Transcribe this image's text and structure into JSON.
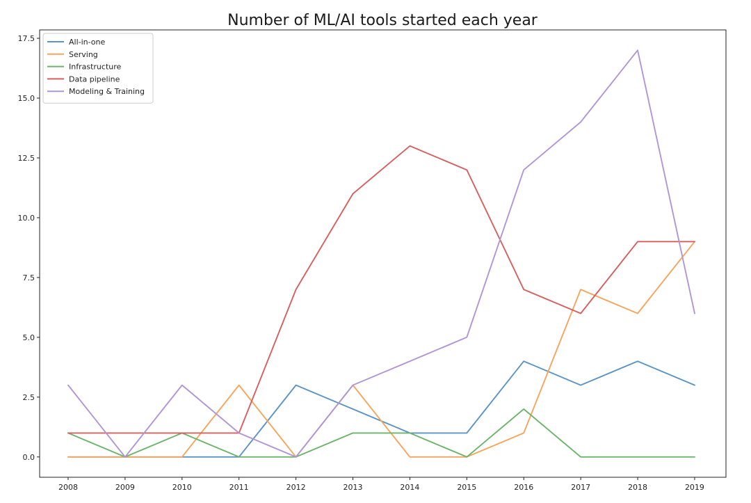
{
  "chart_data": {
    "type": "line",
    "title": "Number of ML/AI tools started each year",
    "xlabel": "",
    "ylabel": "",
    "x": [
      2008,
      2009,
      2010,
      2011,
      2012,
      2013,
      2014,
      2015,
      2016,
      2017,
      2018,
      2019
    ],
    "x_tick_labels": [
      "2008",
      "2009",
      "2010",
      "2011",
      "2012",
      "2013",
      "2014",
      "2015",
      "2016",
      "2017",
      "2018",
      "2019"
    ],
    "y_ticks": [
      0.0,
      2.5,
      5.0,
      7.5,
      10.0,
      12.5,
      15.0,
      17.5
    ],
    "y_tick_labels": [
      "0.0",
      "2.5",
      "5.0",
      "7.5",
      "10.0",
      "12.5",
      "15.0",
      "17.5"
    ],
    "xlim": [
      2007.5,
      2019.55
    ],
    "ylim": [
      -0.85,
      17.85
    ],
    "grid": false,
    "legend_position": "top-left",
    "series": [
      {
        "name": "All-in-one",
        "color": "#5b94c6",
        "values": [
          0,
          0,
          0,
          0,
          3,
          2,
          1,
          1,
          4,
          3,
          4,
          3
        ]
      },
      {
        "name": "Serving",
        "color": "#f6a55c",
        "values": [
          0,
          0,
          0,
          3,
          0,
          3,
          0,
          0,
          1,
          7,
          6,
          9
        ]
      },
      {
        "name": "Infrastructure",
        "color": "#6bb56b",
        "values": [
          1,
          0,
          1,
          0,
          0,
          1,
          1,
          0,
          2,
          0,
          0,
          0
        ]
      },
      {
        "name": "Data pipeline",
        "color": "#d65f5f",
        "values": [
          1,
          1,
          1,
          1,
          7,
          11,
          13,
          12,
          7,
          6,
          9,
          9
        ]
      },
      {
        "name": "Modeling & Training",
        "color": "#b195d6",
        "values": [
          3,
          0,
          3,
          1,
          0,
          3,
          4,
          5,
          12,
          14,
          17,
          6
        ]
      }
    ]
  }
}
